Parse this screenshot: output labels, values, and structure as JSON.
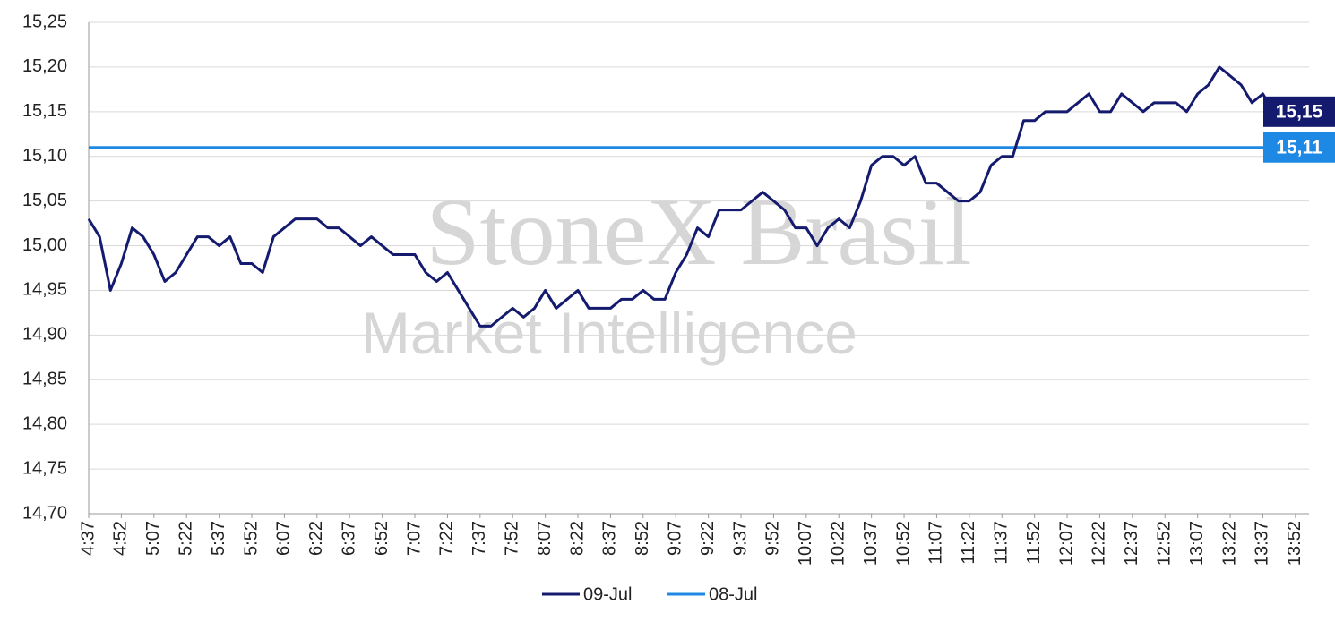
{
  "chart_data": {
    "type": "line",
    "watermark": [
      "StoneX Brasil",
      "Market Intelligence"
    ],
    "categories": [
      "4:37",
      null,
      null,
      "4:52",
      null,
      null,
      "5:07",
      null,
      null,
      "5:22",
      null,
      null,
      "5:37",
      null,
      null,
      "5:52",
      null,
      null,
      "6:07",
      null,
      null,
      "6:22",
      null,
      null,
      "6:37",
      null,
      null,
      "6:52",
      null,
      null,
      "7:07",
      null,
      null,
      "7:22",
      null,
      null,
      "7:37",
      null,
      null,
      "7:52",
      null,
      null,
      "8:07",
      null,
      null,
      "8:22",
      null,
      null,
      "8:37",
      null,
      null,
      "8:52",
      null,
      null,
      "9:07",
      null,
      null,
      "9:22",
      null,
      null,
      "9:37",
      null,
      null,
      "9:52",
      null,
      null,
      "10:07",
      null,
      null,
      "10:22",
      null,
      null,
      "10:37",
      null,
      null,
      "10:52",
      null,
      null,
      "11:07",
      null,
      null,
      "11:22",
      null,
      null,
      "11:37",
      null,
      null,
      "11:52",
      null,
      null,
      "12:07",
      null,
      null,
      "12:22",
      null,
      null,
      "12:37",
      null,
      null,
      "12:52",
      null,
      null,
      "13:07",
      null,
      null,
      "13:22",
      null,
      null,
      "13:37",
      null,
      null,
      "13:52",
      null
    ],
    "series": [
      {
        "name": "09-Jul",
        "color": "#141b6e",
        "end_label": "15,15",
        "values": [
          15.03,
          15.01,
          14.95,
          14.98,
          15.02,
          15.01,
          14.99,
          14.96,
          14.97,
          14.99,
          15.01,
          15.01,
          15.0,
          15.01,
          14.98,
          14.98,
          14.97,
          15.01,
          15.02,
          15.03,
          15.03,
          15.03,
          15.02,
          15.02,
          15.01,
          15.0,
          15.01,
          15.0,
          14.99,
          14.99,
          14.99,
          14.97,
          14.96,
          14.97,
          14.95,
          14.93,
          14.91,
          14.91,
          14.92,
          14.93,
          14.92,
          14.93,
          14.95,
          14.93,
          14.94,
          14.95,
          14.93,
          14.93,
          14.93,
          14.94,
          14.94,
          14.95,
          14.94,
          14.94,
          14.97,
          14.99,
          15.02,
          15.01,
          15.04,
          15.04,
          15.04,
          15.05,
          15.06,
          15.05,
          15.04,
          15.02,
          15.02,
          15.0,
          15.02,
          15.03,
          15.02,
          15.05,
          15.09,
          15.1,
          15.1,
          15.09,
          15.1,
          15.07,
          15.07,
          15.06,
          15.05,
          15.05,
          15.06,
          15.09,
          15.1,
          15.1,
          15.14,
          15.14,
          15.15,
          15.15,
          15.15,
          15.16,
          15.17,
          15.15,
          15.15,
          15.17,
          15.16,
          15.15,
          15.16,
          15.16,
          15.16,
          15.15,
          15.17,
          15.18,
          15.2,
          15.19,
          15.18,
          15.16,
          15.17,
          15.15,
          15.14,
          15.15,
          15.15
        ]
      },
      {
        "name": "08-Jul",
        "color": "#1e88e5",
        "end_label": "15,11",
        "values": [
          15.11,
          15.11,
          15.11,
          15.11,
          15.11,
          15.11,
          15.11,
          15.11,
          15.11,
          15.11,
          15.11,
          15.11,
          15.11,
          15.11,
          15.11,
          15.11,
          15.11,
          15.11,
          15.11,
          15.11,
          15.11,
          15.11,
          15.11,
          15.11,
          15.11,
          15.11,
          15.11,
          15.11,
          15.11,
          15.11,
          15.11,
          15.11,
          15.11,
          15.11,
          15.11,
          15.11,
          15.11,
          15.11,
          15.11,
          15.11,
          15.11,
          15.11,
          15.11,
          15.11,
          15.11,
          15.11,
          15.11,
          15.11,
          15.11,
          15.11,
          15.11,
          15.11,
          15.11,
          15.11,
          15.11,
          15.11,
          15.11,
          15.11,
          15.11,
          15.11,
          15.11,
          15.11,
          15.11,
          15.11,
          15.11,
          15.11,
          15.11,
          15.11,
          15.11,
          15.11,
          15.11,
          15.11,
          15.11,
          15.11,
          15.11,
          15.11,
          15.11,
          15.11,
          15.11,
          15.11,
          15.11,
          15.11,
          15.11,
          15.11,
          15.11,
          15.11,
          15.11,
          15.11,
          15.11,
          15.11,
          15.11,
          15.11,
          15.11,
          15.11,
          15.11,
          15.11,
          15.11,
          15.11,
          15.11,
          15.11,
          15.11,
          15.11,
          15.11,
          15.11,
          15.11,
          15.11,
          15.11,
          15.11,
          15.11,
          15.11,
          15.11,
          15.11,
          15.11
        ]
      }
    ],
    "ylim": [
      14.7,
      15.25
    ],
    "yticks": [
      {
        "value": 14.7,
        "label": "14,70"
      },
      {
        "value": 14.75,
        "label": "14,75"
      },
      {
        "value": 14.8,
        "label": "14,80"
      },
      {
        "value": 14.85,
        "label": "14,85"
      },
      {
        "value": 14.9,
        "label": "14,90"
      },
      {
        "value": 14.95,
        "label": "14,95"
      },
      {
        "value": 15.0,
        "label": "15,00"
      },
      {
        "value": 15.05,
        "label": "15,05"
      },
      {
        "value": 15.1,
        "label": "15,10"
      },
      {
        "value": 15.15,
        "label": "15,15"
      },
      {
        "value": 15.2,
        "label": "15,20"
      },
      {
        "value": 15.25,
        "label": "15,25"
      }
    ],
    "grid": true,
    "legend": "bottom"
  }
}
